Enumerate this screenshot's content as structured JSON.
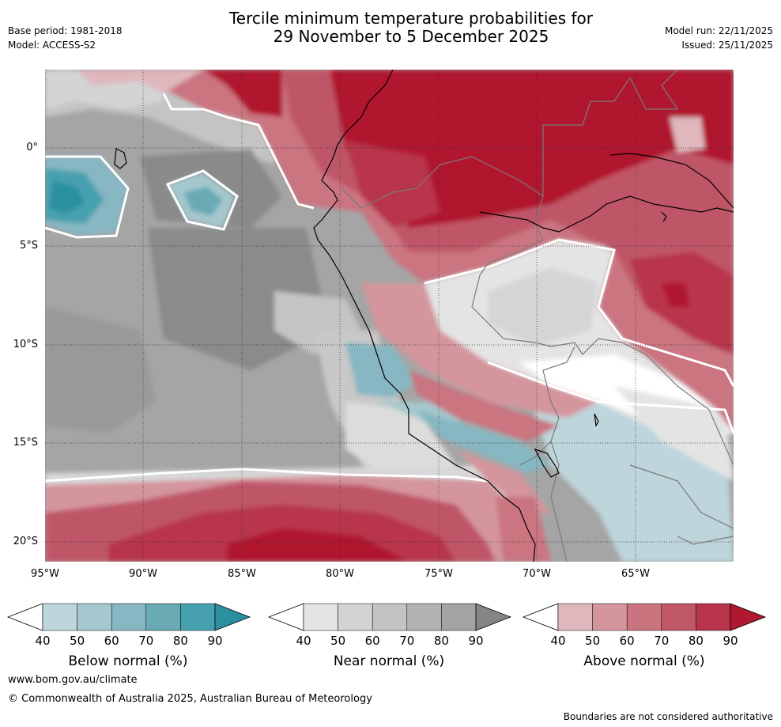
{
  "title_line1": "Tercile minimum temperature probabilities for",
  "title_line2": "29 November to 5 December 2025",
  "base_period": "Base period: 1981-2018",
  "model": "Model: ACCESS-S2",
  "model_run": "Model run: 22/11/2025",
  "issued": "Issued: 25/11/2025",
  "lat_labels": [
    "0°",
    "5°S",
    "10°S",
    "15°S",
    "20°S"
  ],
  "lon_labels": [
    "95°W",
    "90°W",
    "85°W",
    "80°W",
    "75°W",
    "70°W",
    "65°W"
  ],
  "colorbars": [
    {
      "label": "Below normal (%)",
      "ticks": [
        "40",
        "50",
        "60",
        "70",
        "80",
        "90"
      ],
      "colors": [
        "#ffffff",
        "#bdd5db",
        "#a5c8ce",
        "#86b7c2",
        "#69aab5",
        "#47a0af",
        "#2b8fa0"
      ]
    },
    {
      "label": "Near normal (%)",
      "ticks": [
        "40",
        "50",
        "60",
        "70",
        "80",
        "90"
      ],
      "colors": [
        "#ffffff",
        "#e4e4e4",
        "#d3d3d3",
        "#c3c3c3",
        "#b2b2b2",
        "#a3a3a3",
        "#858585"
      ]
    },
    {
      "label": "Above normal (%)",
      "ticks": [
        "40",
        "50",
        "60",
        "70",
        "80",
        "90"
      ],
      "colors": [
        "#ffffff",
        "#dfb7bd",
        "#d4959d",
        "#ca7480",
        "#bf5767",
        "#b8344b",
        "#b0182f"
      ]
    }
  ],
  "website": "www.bom.gov.au/climate",
  "copyright": "© Commonwealth of Australia 2025, Australian Bureau of Meteorology",
  "disclaimer": "Boundaries are not considered authoritative"
}
